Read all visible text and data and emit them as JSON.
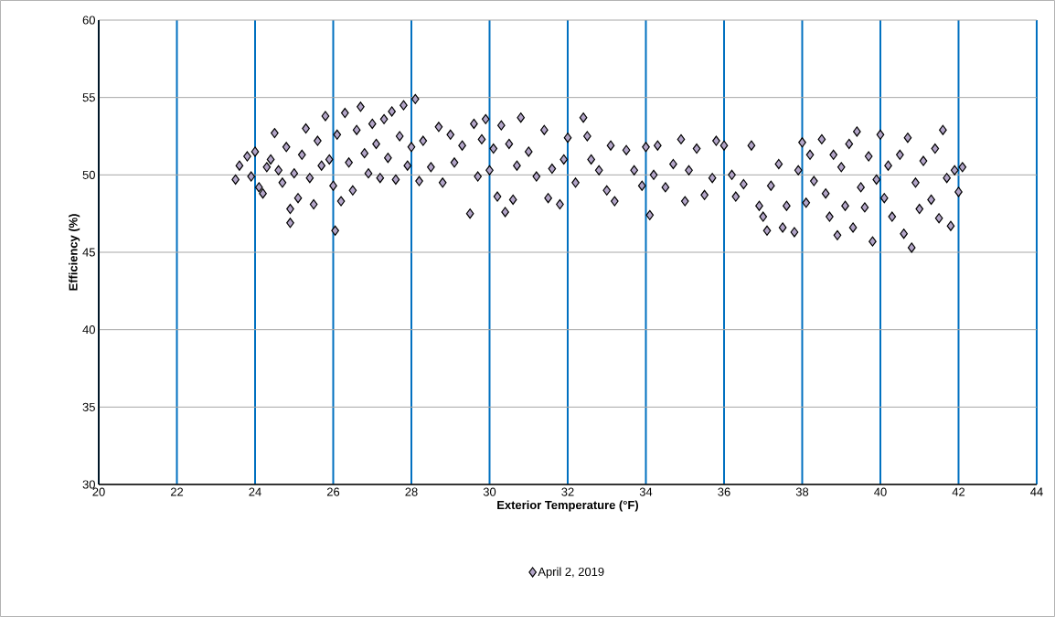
{
  "chart_data": {
    "type": "scatter",
    "xlabel": "Exterior Temperature (°F)",
    "ylabel": "Efficiency (%)",
    "xlim": [
      20,
      44
    ],
    "xticks": [
      20,
      22,
      24,
      26,
      28,
      30,
      32,
      34,
      36,
      38,
      40,
      42,
      44
    ],
    "ylim": [
      30,
      60
    ],
    "yticks": [
      30,
      35,
      40,
      45,
      50,
      55,
      60
    ],
    "grid": true,
    "legend": "bottom",
    "marker": "diamond",
    "series": [
      {
        "name": "April 2, 2019",
        "color": "#b3a5c8",
        "x": [
          23.5,
          23.6,
          23.8,
          23.9,
          24.0,
          24.1,
          24.2,
          24.3,
          24.4,
          24.5,
          24.6,
          24.7,
          24.8,
          24.9,
          24.9,
          25.0,
          25.1,
          25.2,
          25.3,
          25.4,
          25.5,
          25.6,
          25.7,
          25.8,
          25.9,
          26.0,
          26.05,
          26.1,
          26.2,
          26.3,
          26.4,
          26.5,
          26.6,
          26.7,
          26.8,
          26.9,
          27.0,
          27.1,
          27.2,
          27.3,
          27.4,
          27.5,
          27.6,
          27.7,
          27.8,
          27.9,
          28.0,
          28.1,
          28.2,
          28.3,
          28.5,
          28.7,
          28.8,
          29.0,
          29.1,
          29.3,
          29.5,
          29.6,
          29.7,
          29.8,
          29.9,
          30.0,
          30.1,
          30.2,
          30.3,
          30.4,
          30.5,
          30.6,
          30.7,
          30.8,
          31.0,
          31.2,
          31.4,
          31.5,
          31.6,
          31.8,
          31.9,
          32.0,
          32.2,
          32.4,
          32.5,
          32.6,
          32.8,
          33.0,
          33.1,
          33.2,
          33.5,
          33.7,
          33.9,
          34.0,
          34.1,
          34.2,
          34.3,
          34.5,
          34.7,
          34.9,
          35.0,
          35.1,
          35.3,
          35.5,
          35.7,
          35.8,
          36.0,
          36.2,
          36.3,
          36.5,
          36.7,
          36.9,
          37.0,
          37.1,
          37.2,
          37.4,
          37.5,
          37.6,
          37.8,
          37.9,
          38.0,
          38.1,
          38.2,
          38.3,
          38.5,
          38.6,
          38.7,
          38.8,
          38.9,
          39.0,
          39.1,
          39.2,
          39.3,
          39.4,
          39.5,
          39.6,
          39.7,
          39.8,
          39.9,
          40.0,
          40.1,
          40.2,
          40.3,
          40.5,
          40.6,
          40.7,
          40.8,
          40.9,
          41.0,
          41.1,
          41.3,
          41.4,
          41.5,
          41.6,
          41.7,
          41.8,
          41.9,
          42.0,
          42.1
        ],
        "values": [
          49.7,
          50.6,
          51.2,
          49.9,
          51.5,
          49.2,
          48.8,
          50.5,
          51.0,
          52.7,
          50.3,
          49.5,
          51.8,
          47.8,
          46.9,
          50.1,
          48.5,
          51.3,
          53.0,
          49.8,
          48.1,
          52.2,
          50.6,
          53.8,
          51.0,
          49.3,
          46.4,
          52.6,
          48.3,
          54.0,
          50.8,
          49.0,
          52.9,
          54.4,
          51.4,
          50.1,
          53.3,
          52.0,
          49.8,
          53.6,
          51.1,
          54.1,
          49.7,
          52.5,
          54.5,
          50.6,
          51.8,
          54.9,
          49.6,
          52.2,
          50.5,
          53.1,
          49.5,
          52.6,
          50.8,
          51.9,
          47.5,
          53.3,
          49.9,
          52.3,
          53.6,
          50.3,
          51.7,
          48.6,
          53.2,
          47.6,
          52.0,
          48.4,
          50.6,
          53.7,
          51.5,
          49.9,
          52.9,
          48.5,
          50.4,
          48.1,
          51.0,
          52.4,
          49.5,
          53.7,
          52.5,
          51.0,
          50.3,
          49.0,
          51.9,
          48.3,
          51.6,
          50.3,
          49.3,
          51.8,
          47.4,
          50.0,
          51.9,
          49.2,
          50.7,
          52.3,
          48.3,
          50.3,
          51.7,
          48.7,
          49.8,
          52.2,
          51.9,
          50.0,
          48.6,
          49.4,
          51.9,
          48.0,
          47.3,
          46.4,
          49.3,
          50.7,
          46.6,
          48.0,
          46.3,
          50.3,
          52.1,
          48.2,
          51.3,
          49.6,
          52.3,
          48.8,
          47.3,
          51.3,
          46.1,
          50.5,
          48.0,
          52.0,
          46.6,
          52.8,
          49.2,
          47.9,
          51.2,
          45.7,
          49.7,
          52.6,
          48.5,
          50.6,
          47.3,
          51.3,
          46.2,
          52.4,
          45.3,
          49.5,
          47.8,
          50.9,
          48.4,
          51.7,
          47.2,
          52.9,
          49.8,
          46.7,
          50.3,
          48.9,
          50.5
        ]
      }
    ]
  }
}
